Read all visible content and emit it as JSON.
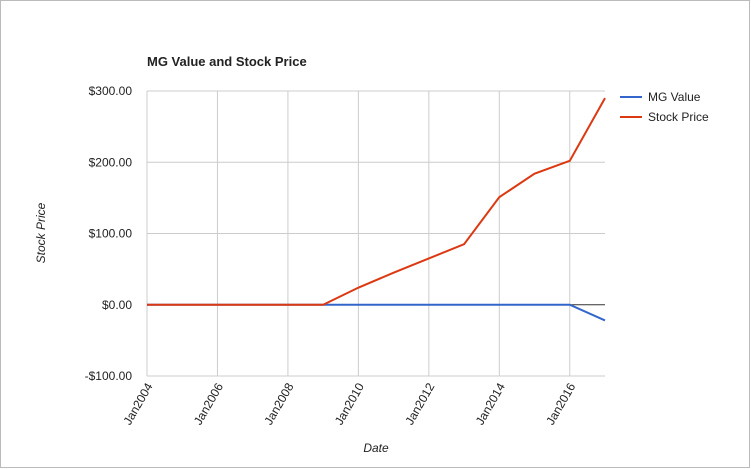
{
  "chart_data": {
    "type": "line",
    "title": "MG Value and Stock Price",
    "x_label": "Date",
    "y_label": "Stock Price",
    "x": [
      "2004-01",
      "2005-01",
      "2006-01",
      "2007-01",
      "2008-01",
      "2009-01",
      "2010-01",
      "2011-01",
      "2012-01",
      "2013-01",
      "2014-01",
      "2015-01",
      "2016-01",
      "2017-01"
    ],
    "series": [
      {
        "name": "MG Value",
        "color": "#3366cc",
        "values": [
          0,
          0,
          0,
          0,
          0,
          0,
          0,
          0,
          0,
          0,
          0,
          0,
          0,
          -22
        ]
      },
      {
        "name": "Stock Price",
        "color": "#dc3912",
        "values": [
          0,
          0,
          0,
          0,
          0,
          0,
          24,
          45,
          65,
          85,
          151,
          184,
          202,
          290
        ]
      }
    ],
    "xlim": [
      "2004-01",
      "2017-01"
    ],
    "xticks": [
      {
        "value": "2004-01",
        "label": "Jan2004"
      },
      {
        "value": "2006-01",
        "label": "Jan2006"
      },
      {
        "value": "2008-01",
        "label": "Jan2008"
      },
      {
        "value": "2010-01",
        "label": "Jan2010"
      },
      {
        "value": "2012-01",
        "label": "Jan2012"
      },
      {
        "value": "2014-01",
        "label": "Jan2014"
      },
      {
        "value": "2016-01",
        "label": "Jan2016"
      }
    ],
    "ylim": [
      -100,
      300
    ],
    "yticks": [
      {
        "value": -100,
        "label": "-$100.00"
      },
      {
        "value": 0,
        "label": "$0.00"
      },
      {
        "value": 100,
        "label": "$100.00"
      },
      {
        "value": 200,
        "label": "$200.00"
      },
      {
        "value": 300,
        "label": "$300.00"
      }
    ],
    "grid": true,
    "legend": "right"
  }
}
